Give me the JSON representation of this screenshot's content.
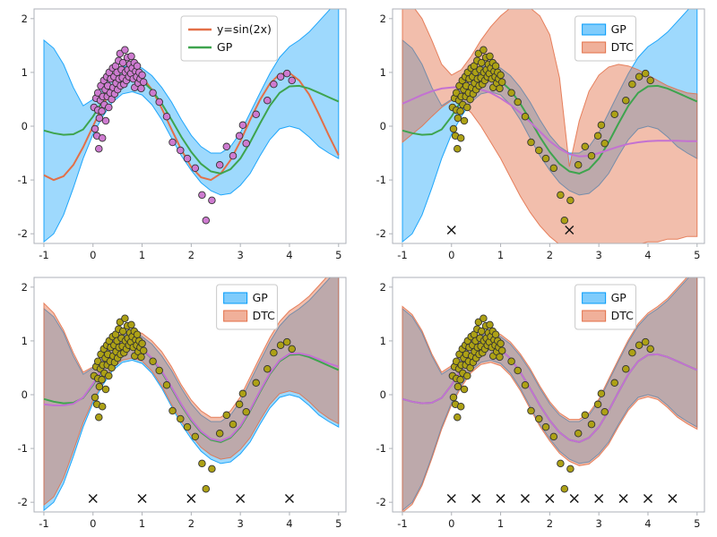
{
  "figure": {
    "background": "#ffffff"
  },
  "chart_data": {
    "type": "line",
    "layout": "2x2-gp-vs-dtc-comparison",
    "xlim": [
      -1.2,
      5.15
    ],
    "ylim": [
      -2.18,
      2.18
    ],
    "x_ticks": [
      -1,
      0,
      1,
      2,
      3,
      4,
      5
    ],
    "y_ticks": [
      -2,
      -1,
      0,
      1,
      2
    ],
    "grid": false,
    "colors": {
      "gp_band": "#009AFA",
      "gp_band_alpha": 0.38,
      "dtc_band": "#E36F47",
      "dtc_band_alpha": 0.45,
      "true_line": "#E36F47",
      "gp_line": "#3EA44E",
      "dtc_line": "#C371D2",
      "scatter_p1": "#CE7BD0",
      "scatter_rest": "#ADA115",
      "marker_stroke": "#333333",
      "inducing": "#111111",
      "frame": "#aeb2b8",
      "tick_label": "#1a1a1a",
      "legend_border": "#c9c9c9",
      "legend_bg": "#ffffff"
    },
    "xs": [
      -1,
      -0.8,
      -0.6,
      -0.4,
      -0.2,
      0,
      0.2,
      0.4,
      0.6,
      0.8,
      1,
      1.2,
      1.4,
      1.6,
      1.8,
      2,
      2.2,
      2.4,
      2.6,
      2.8,
      3,
      3.2,
      3.4,
      3.6,
      3.8,
      4,
      4.2,
      4.4,
      4.6,
      4.8,
      5
    ],
    "true_curve": {
      "label": "y=sin(2x)",
      "values": [
        -0.91,
        -1,
        -0.93,
        -0.72,
        -0.39,
        0,
        0.39,
        0.72,
        0.93,
        1,
        0.91,
        0.68,
        0.33,
        -0.06,
        -0.44,
        -0.76,
        -0.95,
        -1,
        -0.88,
        -0.63,
        -0.28,
        0.12,
        0.49,
        0.79,
        0.97,
        0.99,
        0.85,
        0.59,
        0.22,
        -0.17,
        -0.54
      ]
    },
    "gp": {
      "label": "GP",
      "mean": [
        -0.08,
        -0.13,
        -0.16,
        -0.15,
        -0.06,
        0.18,
        0.48,
        0.72,
        0.86,
        0.9,
        0.84,
        0.67,
        0.42,
        0.12,
        -0.2,
        -0.48,
        -0.7,
        -0.84,
        -0.88,
        -0.8,
        -0.6,
        -0.3,
        0.05,
        0.38,
        0.62,
        0.74,
        0.75,
        0.7,
        0.62,
        0.54,
        0.46
      ],
      "upper": [
        1.6,
        1.45,
        1.15,
        0.72,
        0.38,
        0.5,
        0.76,
        0.97,
        1.1,
        1.14,
        1.08,
        0.94,
        0.72,
        0.45,
        0.12,
        -0.17,
        -0.38,
        -0.5,
        -0.5,
        -0.38,
        -0.12,
        0.25,
        0.62,
        0.98,
        1.28,
        1.48,
        1.6,
        1.75,
        1.95,
        2.15,
        2.35
      ],
      "lower": [
        -2.15,
        -2,
        -1.65,
        -1.15,
        -0.6,
        -0.15,
        0.18,
        0.45,
        0.6,
        0.64,
        0.58,
        0.4,
        0.12,
        -0.22,
        -0.55,
        -0.82,
        -1.05,
        -1.2,
        -1.28,
        -1.25,
        -1.1,
        -0.88,
        -0.55,
        -0.25,
        -0.05,
        0,
        -0.05,
        -0.2,
        -0.38,
        -0.5,
        -0.6
      ]
    },
    "scatter": [
      [
        0.02,
        0.35
      ],
      [
        0.04,
        -0.05
      ],
      [
        0.06,
        0.52
      ],
      [
        0.08,
        -0.18
      ],
      [
        0.1,
        0.3
      ],
      [
        0.1,
        0.62
      ],
      [
        0.12,
        -0.42
      ],
      [
        0.13,
        0.15
      ],
      [
        0.15,
        0.48
      ],
      [
        0.16,
        0.75
      ],
      [
        0.18,
        0.28
      ],
      [
        0.19,
        -0.22
      ],
      [
        0.2,
        0.55
      ],
      [
        0.22,
        0.85
      ],
      [
        0.23,
        0.4
      ],
      [
        0.25,
        0.68
      ],
      [
        0.26,
        0.1
      ],
      [
        0.28,
        0.92
      ],
      [
        0.29,
        0.55
      ],
      [
        0.3,
        0.75
      ],
      [
        0.32,
        0.35
      ],
      [
        0.33,
        1.0
      ],
      [
        0.35,
        0.62
      ],
      [
        0.36,
        0.88
      ],
      [
        0.38,
        0.5
      ],
      [
        0.4,
        1.08
      ],
      [
        0.41,
        0.72
      ],
      [
        0.43,
        0.92
      ],
      [
        0.44,
        0.6
      ],
      [
        0.46,
        1.12
      ],
      [
        0.47,
        0.8
      ],
      [
        0.49,
        1.0
      ],
      [
        0.5,
        0.68
      ],
      [
        0.52,
        1.22
      ],
      [
        0.53,
        0.88
      ],
      [
        0.55,
        1.35
      ],
      [
        0.56,
        0.75
      ],
      [
        0.58,
        1.05
      ],
      [
        0.6,
        0.9
      ],
      [
        0.61,
        1.18
      ],
      [
        0.63,
        0.78
      ],
      [
        0.65,
        1.42
      ],
      [
        0.66,
        1.0
      ],
      [
        0.68,
        0.85
      ],
      [
        0.7,
        1.28
      ],
      [
        0.71,
        1.05
      ],
      [
        0.73,
        0.92
      ],
      [
        0.75,
        1.15
      ],
      [
        0.77,
        0.98
      ],
      [
        0.78,
        1.3
      ],
      [
        0.8,
        1.08
      ],
      [
        0.82,
        0.88
      ],
      [
        0.84,
        1.18
      ],
      [
        0.85,
        0.72
      ],
      [
        0.87,
        1.02
      ],
      [
        0.89,
        0.92
      ],
      [
        0.9,
        1.12
      ],
      [
        0.92,
        0.8
      ],
      [
        0.94,
        1.0
      ],
      [
        0.96,
        0.88
      ],
      [
        0.98,
        0.7
      ],
      [
        1.0,
        0.95
      ],
      [
        1.03,
        0.82
      ],
      [
        1.22,
        0.62
      ],
      [
        1.35,
        0.45
      ],
      [
        1.5,
        0.18
      ],
      [
        1.62,
        -0.3
      ],
      [
        1.78,
        -0.45
      ],
      [
        1.92,
        -0.6
      ],
      [
        2.08,
        -0.78
      ],
      [
        2.22,
        -1.28
      ],
      [
        2.3,
        -1.75
      ],
      [
        2.42,
        -1.38
      ],
      [
        2.58,
        -0.72
      ],
      [
        2.72,
        -0.38
      ],
      [
        2.85,
        -0.55
      ],
      [
        2.98,
        -0.18
      ],
      [
        3.05,
        0.02
      ],
      [
        3.12,
        -0.32
      ],
      [
        3.32,
        0.22
      ],
      [
        3.55,
        0.48
      ],
      [
        3.68,
        0.78
      ],
      [
        3.82,
        0.92
      ],
      [
        3.95,
        0.98
      ],
      [
        4.05,
        0.85
      ]
    ],
    "panels": [
      {
        "id": "exact-gp",
        "show_true": true,
        "scatter_color_key": "scatter_p1",
        "inducing": [],
        "dtc": null,
        "legend": [
          {
            "swatch": "line",
            "color_key": "true_line",
            "label": "y=sin(2x)"
          },
          {
            "swatch": "line",
            "color_key": "gp_line",
            "label": "GP"
          }
        ]
      },
      {
        "id": "dtc-2-inducing",
        "show_true": false,
        "scatter_color_key": "scatter_rest",
        "inducing": [
          0,
          2.4
        ],
        "dtc": {
          "label": "DTC",
          "mean": [
            0.42,
            0.5,
            0.58,
            0.65,
            0.7,
            0.72,
            0.73,
            0.72,
            0.68,
            0.62,
            0.52,
            0.4,
            0.25,
            0.08,
            -0.1,
            -0.28,
            -0.42,
            -0.52,
            -0.56,
            -0.55,
            -0.5,
            -0.44,
            -0.38,
            -0.33,
            -0.3,
            -0.28,
            -0.27,
            -0.27,
            -0.27,
            -0.28,
            -0.28
          ],
          "upper": [
            2.35,
            2.25,
            2,
            1.6,
            1.15,
            0.95,
            1.05,
            1.3,
            1.6,
            1.85,
            2.05,
            2.2,
            2.25,
            2.2,
            2.05,
            1.7,
            0.9,
            -0.75,
            0.1,
            0.65,
            0.95,
            1.1,
            1.15,
            1.12,
            1.05,
            0.95,
            0.85,
            0.75,
            0.68,
            0.62,
            0.6
          ],
          "lower": [
            -0.3,
            -0.15,
            0,
            0.18,
            0.35,
            0.48,
            0.42,
            0.25,
            0,
            -0.3,
            -0.6,
            -0.95,
            -1.3,
            -1.6,
            -1.85,
            -2.05,
            -2.2,
            -2.3,
            -2.35,
            -2.35,
            -2.3,
            -2.3,
            -2.25,
            -2.2,
            -2.2,
            -2.15,
            -2.15,
            -2.1,
            -2.1,
            -2.05,
            -2.05
          ]
        },
        "legend": [
          {
            "swatch": "patch",
            "color_key": "gp_band",
            "label": "GP"
          },
          {
            "swatch": "patch",
            "color_key": "dtc_band",
            "label": "DTC"
          }
        ]
      },
      {
        "id": "dtc-5-inducing",
        "show_true": false,
        "scatter_color_key": "scatter_rest",
        "inducing": [
          0,
          1,
          2,
          3,
          4
        ],
        "dtc": {
          "label": "DTC",
          "mean": [
            -0.18,
            -0.2,
            -0.2,
            -0.17,
            -0.05,
            0.2,
            0.5,
            0.74,
            0.88,
            0.91,
            0.85,
            0.68,
            0.44,
            0.14,
            -0.18,
            -0.46,
            -0.68,
            -0.82,
            -0.86,
            -0.78,
            -0.58,
            -0.28,
            0.07,
            0.4,
            0.64,
            0.76,
            0.77,
            0.73,
            0.66,
            0.58,
            0.52
          ],
          "upper": [
            1.7,
            1.52,
            1.2,
            0.78,
            0.42,
            0.52,
            0.8,
            1.02,
            1.16,
            1.2,
            1.14,
            1,
            0.8,
            0.52,
            0.18,
            -0.1,
            -0.3,
            -0.42,
            -0.42,
            -0.3,
            -0.04,
            0.33,
            0.7,
            1.06,
            1.36,
            1.56,
            1.68,
            1.83,
            2.03,
            2.23,
            2.43
          ],
          "lower": [
            -2.05,
            -1.9,
            -1.55,
            -1.05,
            -0.52,
            -0.1,
            0.22,
            0.5,
            0.64,
            0.68,
            0.62,
            0.44,
            0.16,
            -0.18,
            -0.5,
            -0.76,
            -0.98,
            -1.12,
            -1.2,
            -1.17,
            -1.02,
            -0.8,
            -0.48,
            -0.18,
            0.02,
            0.07,
            0.02,
            -0.13,
            -0.31,
            -0.44,
            -0.54
          ]
        },
        "legend": [
          {
            "swatch": "patch",
            "color_key": "gp_band",
            "label": "GP"
          },
          {
            "swatch": "patch",
            "color_key": "dtc_band",
            "label": "DTC"
          }
        ]
      },
      {
        "id": "dtc-10-inducing",
        "show_true": false,
        "scatter_color_key": "scatter_rest",
        "inducing": [
          0,
          0.5,
          1,
          1.5,
          2,
          2.5,
          3,
          3.5,
          4,
          4.5
        ],
        "dtc": {
          "label": "DTC",
          "mean": [
            -0.08,
            -0.13,
            -0.16,
            -0.15,
            -0.06,
            0.18,
            0.48,
            0.72,
            0.86,
            0.9,
            0.84,
            0.67,
            0.42,
            0.12,
            -0.2,
            -0.48,
            -0.7,
            -0.84,
            -0.88,
            -0.8,
            -0.6,
            -0.3,
            0.05,
            0.38,
            0.62,
            0.74,
            0.75,
            0.7,
            0.62,
            0.54,
            0.46
          ],
          "upper": [
            1.64,
            1.49,
            1.19,
            0.76,
            0.42,
            0.54,
            0.8,
            1.01,
            1.14,
            1.18,
            1.12,
            0.98,
            0.76,
            0.49,
            0.16,
            -0.13,
            -0.34,
            -0.46,
            -0.46,
            -0.34,
            -0.08,
            0.29,
            0.66,
            1.02,
            1.32,
            1.52,
            1.64,
            1.79,
            1.99,
            2.19,
            2.39
          ],
          "lower": [
            -2.19,
            -2.04,
            -1.69,
            -1.19,
            -0.64,
            -0.19,
            0.14,
            0.41,
            0.56,
            0.6,
            0.54,
            0.36,
            0.08,
            -0.26,
            -0.59,
            -0.86,
            -1.09,
            -1.24,
            -1.32,
            -1.29,
            -1.14,
            -0.92,
            -0.59,
            -0.29,
            -0.09,
            -0.04,
            -0.09,
            -0.24,
            -0.42,
            -0.54,
            -0.64
          ]
        },
        "legend": [
          {
            "swatch": "patch",
            "color_key": "gp_band",
            "label": "GP"
          },
          {
            "swatch": "patch",
            "color_key": "dtc_band",
            "label": "DTC"
          }
        ]
      }
    ]
  }
}
